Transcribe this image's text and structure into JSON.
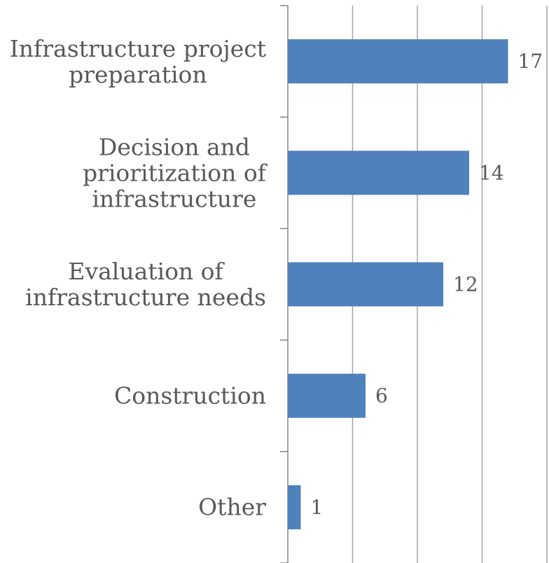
{
  "chart_data": {
    "type": "barh",
    "categories": [
      "Infrastructure project\npreparation",
      "Decision and\nprioritization of\ninfrastructure",
      "Evaluation of\ninfrastructure needs",
      "Construction",
      "Other"
    ],
    "values": [
      17,
      14,
      12,
      6,
      1
    ],
    "color": "#4f81bd",
    "xlim": [
      0,
      20
    ],
    "xticks": [
      0,
      5,
      10,
      15,
      20
    ],
    "grid": true
  }
}
